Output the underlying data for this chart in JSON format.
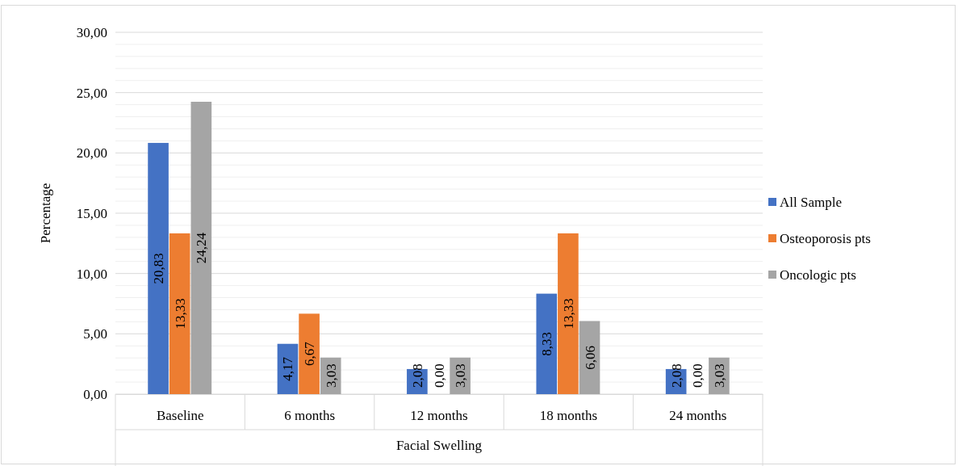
{
  "chart_data": {
    "type": "bar",
    "xlabel": "Facial Swelling",
    "ylabel": "Percentage",
    "categories": [
      "Baseline",
      "6 months",
      "12 months",
      "18 months",
      "24 months"
    ],
    "series": [
      {
        "name": "All Sample",
        "color": "#4472c4",
        "values": [
          20.83,
          4.17,
          2.08,
          8.33,
          2.08
        ],
        "value_labels": [
          "20,83",
          "4,17",
          "2,08",
          "8,33",
          "2,08"
        ]
      },
      {
        "name": "Osteoporosis pts",
        "color": "#ed7d31",
        "values": [
          13.33,
          6.67,
          0,
          13.33,
          0
        ],
        "value_labels": [
          "13,33",
          "6,67",
          "0,00",
          "13,33",
          "0,00"
        ]
      },
      {
        "name": "Oncologic pts",
        "color": "#a5a5a5",
        "values": [
          24.24,
          3.03,
          3.03,
          6.06,
          3.03
        ],
        "value_labels": [
          "24,24",
          "3,03",
          "3,03",
          "6,06",
          "3,03"
        ]
      }
    ],
    "ylim": [
      0,
      30
    ],
    "yticks": [
      {
        "value": 0,
        "label": "0,00"
      },
      {
        "value": 1,
        "label": null
      },
      {
        "value": 2,
        "label": null
      },
      {
        "value": 3,
        "label": null
      },
      {
        "value": 4,
        "label": null
      },
      {
        "value": 5,
        "label": "5,00"
      },
      {
        "value": 6,
        "label": null
      },
      {
        "value": 7,
        "label": null
      },
      {
        "value": 8,
        "label": null
      },
      {
        "value": 9,
        "label": null
      },
      {
        "value": 10,
        "label": "10,00"
      },
      {
        "value": 11,
        "label": null
      },
      {
        "value": 12,
        "label": null
      },
      {
        "value": 13,
        "label": null
      },
      {
        "value": 14,
        "label": null
      },
      {
        "value": 15,
        "label": "15,00"
      },
      {
        "value": 16,
        "label": null
      },
      {
        "value": 17,
        "label": null
      },
      {
        "value": 18,
        "label": null
      },
      {
        "value": 19,
        "label": null
      },
      {
        "value": 20,
        "label": "20,00"
      },
      {
        "value": 21,
        "label": null
      },
      {
        "value": 22,
        "label": null
      },
      {
        "value": 23,
        "label": null
      },
      {
        "value": 24,
        "label": null
      },
      {
        "value": 25,
        "label": "25,00"
      },
      {
        "value": 26,
        "label": null
      },
      {
        "value": 27,
        "label": null
      },
      {
        "value": 28,
        "label": null
      },
      {
        "value": 29,
        "label": null
      },
      {
        "value": 30,
        "label": "30,00"
      }
    ],
    "grid": "y",
    "legend": "right"
  }
}
